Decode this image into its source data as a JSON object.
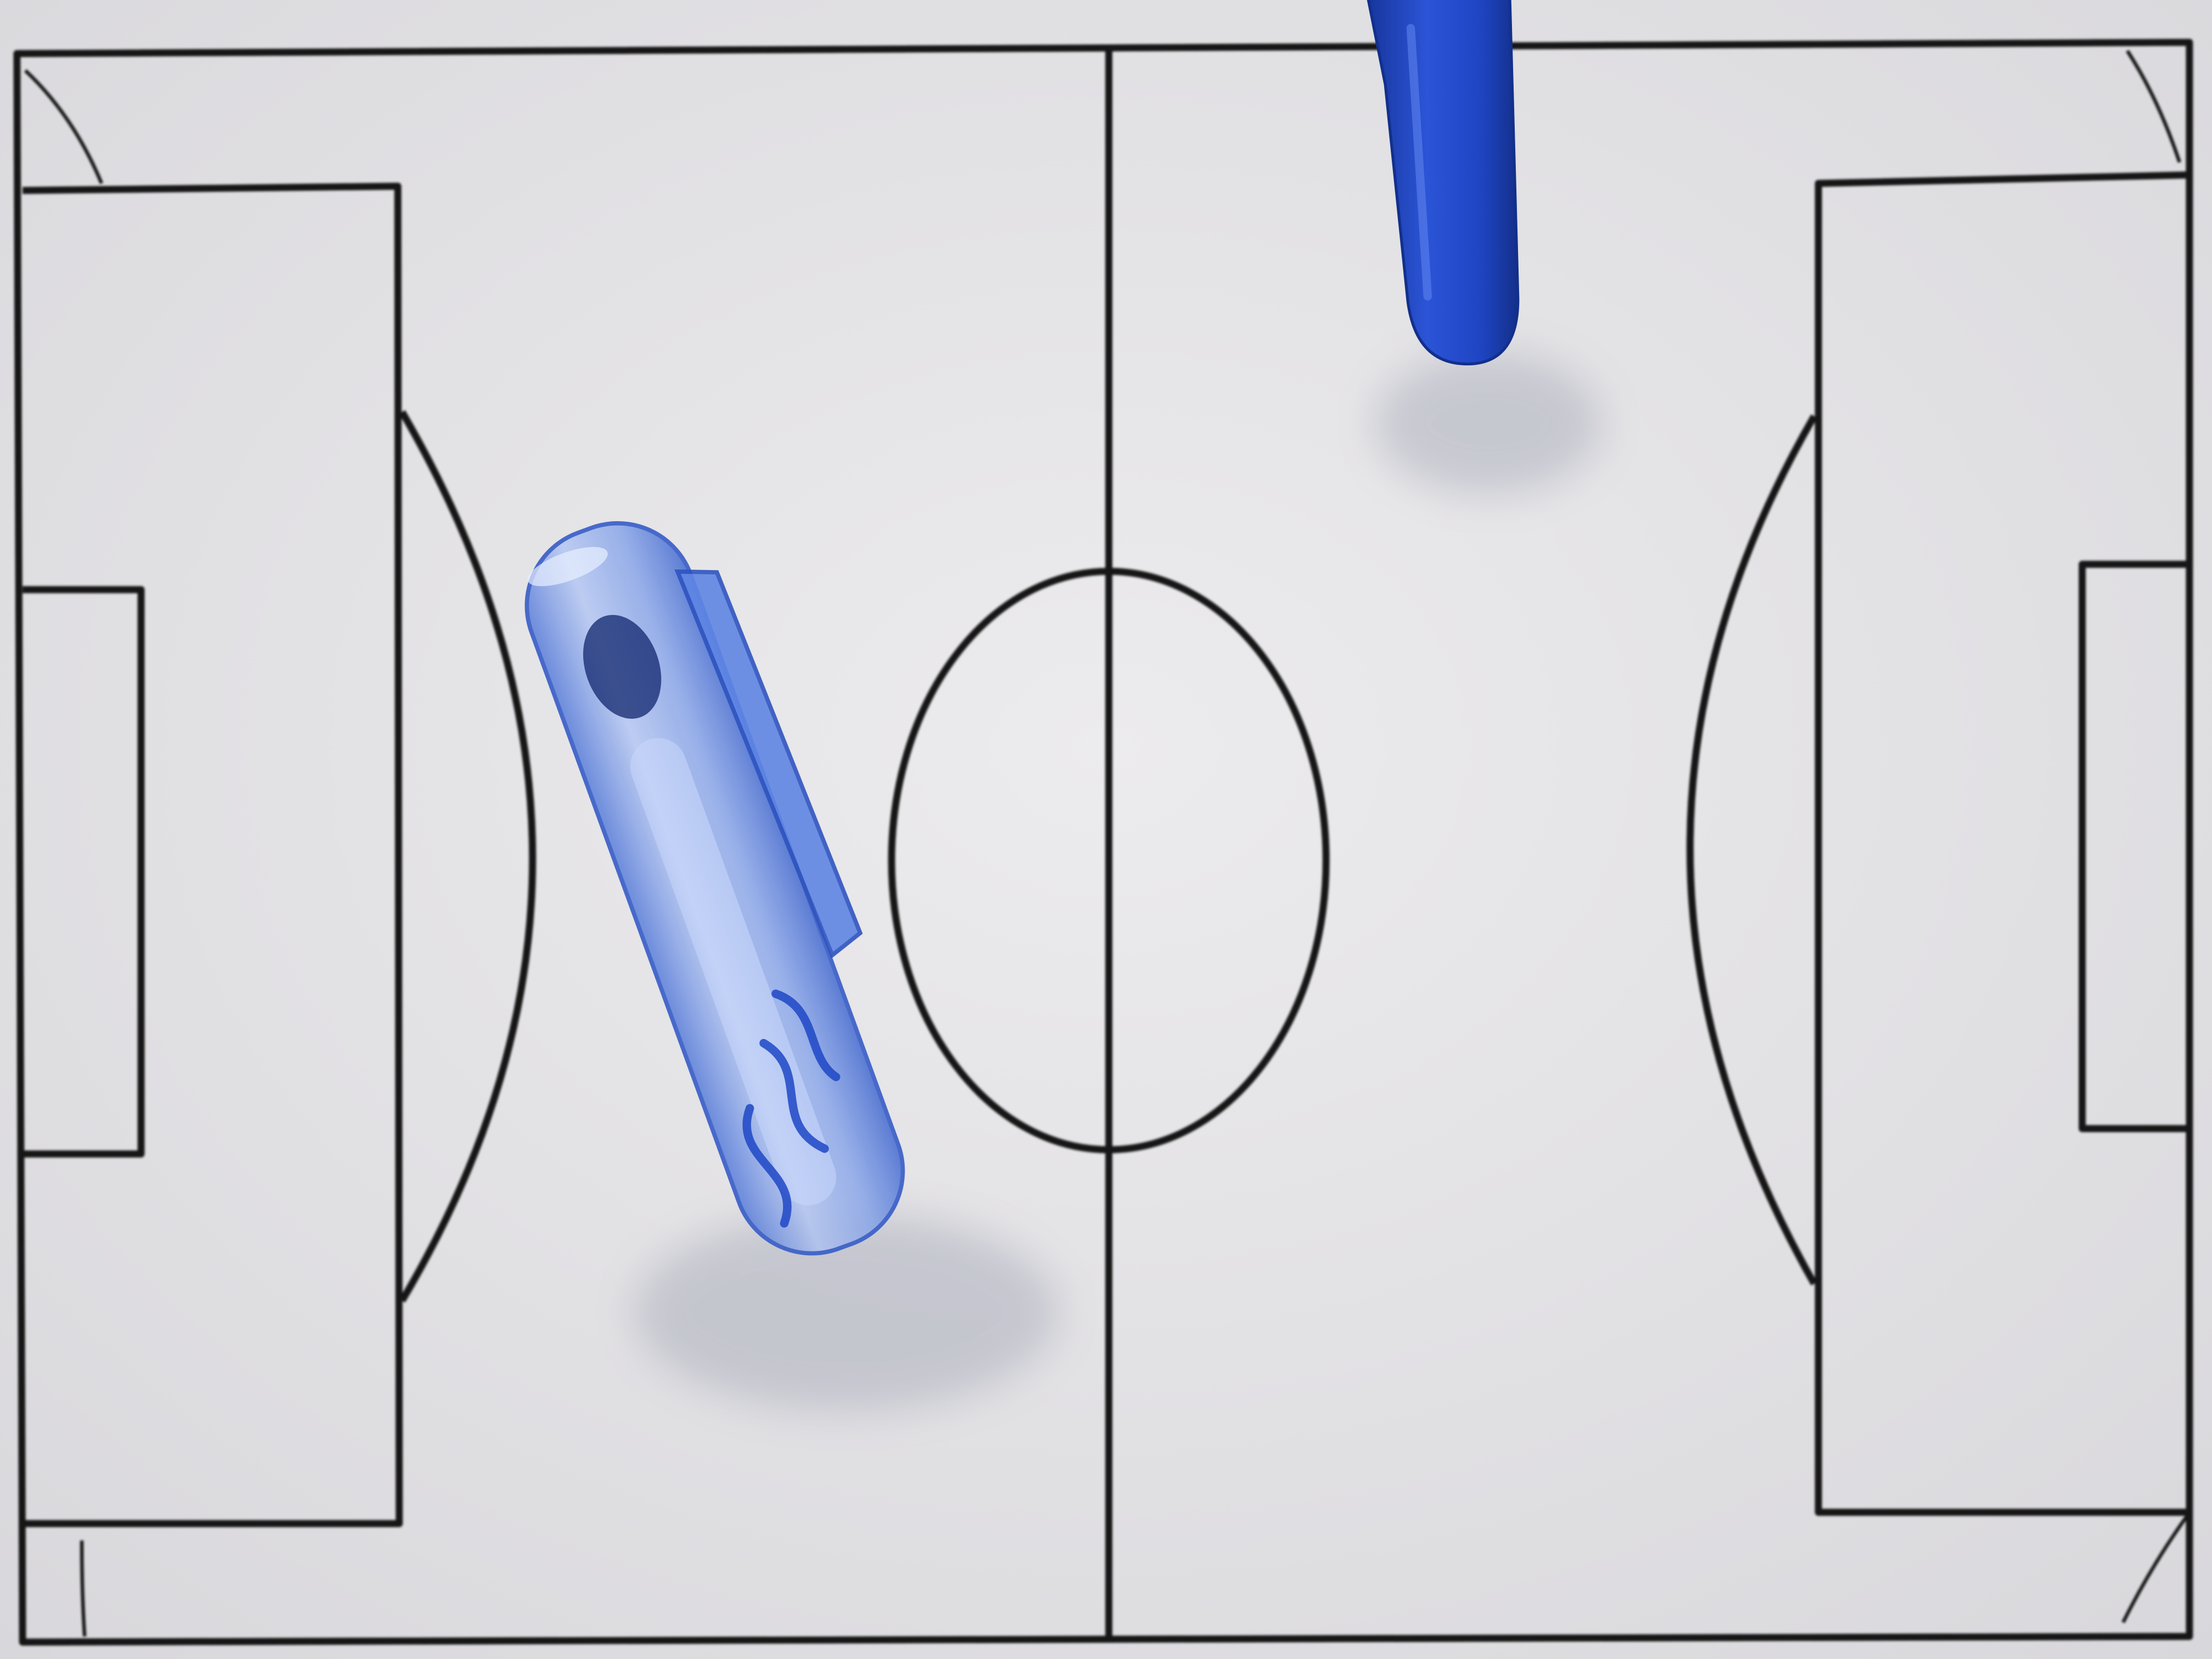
{
  "scene": {
    "description_free": true,
    "colors": {
      "paper": "#e9e8ea",
      "paper_shadow": "#d9d8dc",
      "pitch_lines": "#111111",
      "pen_cap_translucent": "#6f93e6",
      "pen_cap_highlight": "#cfdcff",
      "marker_body": "#1f45c4",
      "marker_shadow": "#17338f",
      "cast_shadow": "#9aa0b0"
    },
    "objects": [
      {
        "name": "football-pitch-diagram"
      },
      {
        "name": "translucent-pen-cap"
      },
      {
        "name": "blue-marker"
      }
    ]
  }
}
